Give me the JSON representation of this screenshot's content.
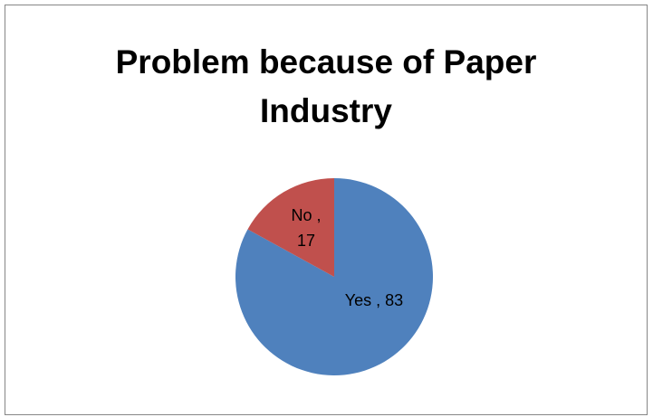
{
  "chart_data": {
    "type": "pie",
    "title_lines": [
      "Problem because of Paper",
      "Industry"
    ],
    "slices": [
      {
        "name": "Yes",
        "value": 83,
        "color": "#4f81bd",
        "label_lines": [
          "Yes , 83"
        ]
      },
      {
        "name": "No",
        "value": 17,
        "color": "#c0504d",
        "label_lines": [
          "No ,",
          "17"
        ]
      }
    ],
    "legend": false
  }
}
